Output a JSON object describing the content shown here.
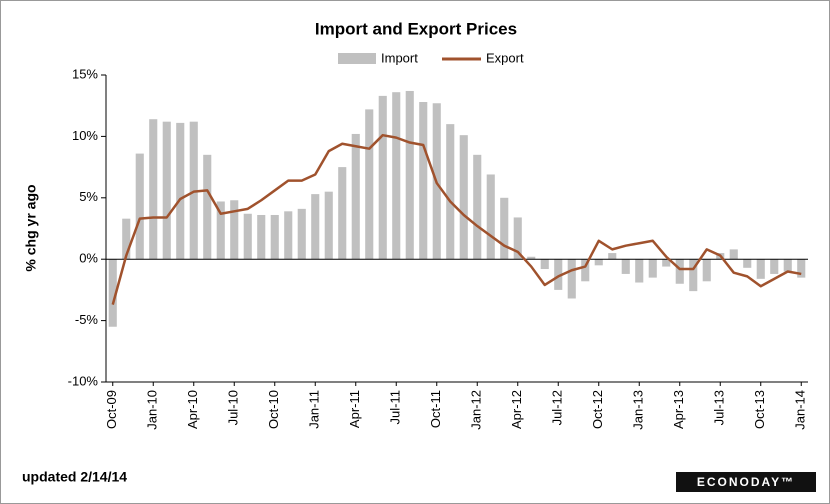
{
  "chart_data": {
    "type": "bar_line",
    "title": "Import and Export Prices",
    "y_axis_label": "% chg yr ago",
    "footnote": "updated 2/14/14",
    "source": "ECONODAY™",
    "categories": [
      "Oct-09",
      null,
      null,
      "Jan-10",
      null,
      null,
      "Apr-10",
      null,
      null,
      "Jul-10",
      null,
      null,
      "Oct-10",
      null,
      null,
      "Jan-11",
      null,
      null,
      "Apr-11",
      null,
      null,
      "Jul-11",
      null,
      null,
      "Oct-11",
      null,
      null,
      "Jan-12",
      null,
      null,
      "Apr-12",
      null,
      null,
      "Jul-12",
      null,
      null,
      "Oct-12",
      null,
      null,
      "Jan-13",
      null,
      null,
      "Apr-13",
      null,
      null,
      "Jul-13",
      null,
      null,
      "Oct-13",
      null,
      null,
      "Jan-14"
    ],
    "series": [
      {
        "name": "Import",
        "type": "bar",
        "color": "#c0c0c0",
        "values": [
          -5.5,
          3.3,
          8.6,
          11.4,
          11.2,
          11.1,
          11.2,
          8.5,
          4.7,
          4.8,
          3.7,
          3.6,
          3.6,
          3.9,
          4.1,
          5.3,
          5.5,
          7.5,
          10.2,
          12.2,
          13.3,
          13.6,
          13.7,
          12.8,
          12.7,
          11.0,
          10.1,
          8.5,
          6.9,
          5.0,
          3.4,
          0.2,
          -0.8,
          -2.5,
          -3.2,
          -1.8,
          -0.5,
          0.5,
          -1.2,
          -1.9,
          -1.5,
          -0.6,
          -2.0,
          -2.6,
          -1.8,
          0.5,
          0.8,
          -0.7,
          -1.6,
          -1.2,
          -1.0,
          -1.5
        ]
      },
      {
        "name": "Export",
        "type": "line",
        "color": "#a0522d",
        "values": [
          -3.7,
          0.3,
          3.3,
          3.4,
          3.4,
          4.9,
          5.5,
          5.6,
          3.7,
          3.9,
          4.1,
          4.8,
          5.6,
          6.4,
          6.4,
          6.9,
          8.8,
          9.4,
          9.2,
          9.0,
          10.1,
          9.9,
          9.5,
          9.3,
          6.2,
          4.7,
          3.6,
          2.7,
          1.9,
          1.1,
          0.6,
          -0.6,
          -2.1,
          -1.4,
          -0.9,
          -0.6,
          1.5,
          0.8,
          1.1,
          1.3,
          1.5,
          0.2,
          -0.8,
          -0.8,
          0.8,
          0.3,
          -1.1,
          -1.4,
          -2.2,
          -1.6,
          -1.0,
          -1.2
        ]
      }
    ],
    "ylim": [
      -10,
      15
    ],
    "yticks": [
      {
        "value": -10,
        "label": "-10%"
      },
      {
        "value": -5,
        "label": "-5%"
      },
      {
        "value": 0,
        "label": "0%"
      },
      {
        "value": 5,
        "label": "5%"
      },
      {
        "value": 10,
        "label": "10%"
      },
      {
        "value": 15,
        "label": "15%"
      }
    ],
    "grid": false
  }
}
